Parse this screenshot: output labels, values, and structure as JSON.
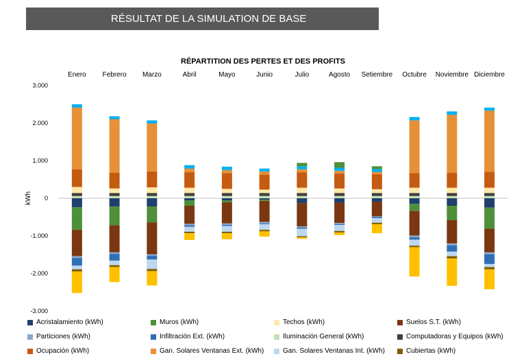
{
  "header": {
    "title": "RÉSULTAT DE LA SIMULATION DE BASE"
  },
  "chart_data": {
    "type": "bar",
    "stacked": true,
    "title": "RÉPARTITION DES PERTES ET DES PROFITS",
    "ylabel": "kWh",
    "xlabel": "",
    "ylim": [
      -3000,
      3000
    ],
    "yticks": [
      3000,
      2000,
      1000,
      0,
      -1000,
      -2000,
      -3000
    ],
    "ytick_labels": [
      "3.000",
      "2.000",
      "1.000",
      "0",
      "-1.000",
      "-2.000",
      "-3.000"
    ],
    "categories": [
      "Enero",
      "Febrero",
      "Marzo",
      "Abril",
      "Mayo",
      "Junio",
      "Julio",
      "Agosto",
      "Setiembre",
      "Octubre",
      "Noviembre",
      "Diciembre"
    ],
    "grid": false,
    "legend_position": "bottom",
    "series": [
      {
        "name": "Acristalamiento (kWh)",
        "color": "#1f3f6e",
        "values": [
          -240,
          -220,
          -220,
          -60,
          -60,
          -40,
          -130,
          -120,
          -90,
          -150,
          -200,
          -250
        ]
      },
      {
        "name": "Muros (kWh)",
        "color": "#4e8f3a",
        "values": [
          -600,
          -500,
          -420,
          -140,
          -50,
          -30,
          90,
          150,
          70,
          -190,
          -380,
          -560
        ]
      },
      {
        "name": "Techos (kWh)",
        "color": "#fde9a8",
        "values": [
          160,
          120,
          150,
          140,
          110,
          90,
          140,
          120,
          100,
          140,
          140,
          140
        ]
      },
      {
        "name": "Suelos S.T. (kWh)",
        "color": "#7a3712",
        "values": [
          -700,
          -720,
          -850,
          -480,
          -560,
          -560,
          -620,
          -540,
          -390,
          -650,
          -620,
          -630
        ]
      },
      {
        "name": "Particiones (kWh)",
        "color": "#8ba6c8",
        "values": [
          -50,
          -40,
          -40,
          -40,
          -40,
          -40,
          -30,
          -30,
          -20,
          -50,
          -50,
          -50
        ]
      },
      {
        "name": "Infiltración Ext. (kWh)",
        "color": "#2e6fb5",
        "values": [
          -200,
          -180,
          -100,
          -40,
          -30,
          -20,
          -30,
          -20,
          -30,
          -60,
          -170,
          -260
        ]
      },
      {
        "name": "Iluminación General (kWh)",
        "color": "#c5e0b4",
        "values": [
          60,
          60,
          60,
          60,
          60,
          60,
          60,
          60,
          60,
          60,
          60,
          60
        ]
      },
      {
        "name": "Computadoras y Equipos (kWh)",
        "color": "#404040",
        "values": [
          80,
          80,
          80,
          80,
          80,
          80,
          80,
          80,
          80,
          80,
          80,
          80
        ]
      },
      {
        "name": "Ocupación (kWh)",
        "color": "#c55a11",
        "values": [
          470,
          420,
          420,
          410,
          420,
          400,
          410,
          400,
          400,
          390,
          400,
          420
        ]
      },
      {
        "name": "Gan. Solares Ventanas Ext. (kWh)",
        "color": "#e69138",
        "values": [
          1640,
          1420,
          1280,
          100,
          80,
          80,
          80,
          70,
          60,
          1400,
          1540,
          1630
        ]
      },
      {
        "name": "Gan. Solares Ventanas Int. (kWh)",
        "color": "#bdd7ee",
        "values": [
          -100,
          -120,
          -250,
          -130,
          -150,
          -150,
          -200,
          -160,
          -120,
          -160,
          -120,
          -80
        ]
      },
      {
        "name": "Cubiertas (kWh)",
        "color": "#7f6000",
        "values": [
          -60,
          -50,
          -60,
          -40,
          -40,
          -40,
          -30,
          -40,
          -40,
          -40,
          -60,
          -60
        ]
      }
    ],
    "extra_series": [
      {
        "color": "#ffc000",
        "values": [
          -570,
          -400,
          -380,
          -180,
          -160,
          -140,
          -40,
          -70,
          -240,
          -780,
          -730,
          -530
        ]
      },
      {
        "color": "#00b0f0",
        "values": [
          90,
          80,
          80,
          90,
          90,
          80,
          80,
          80,
          80,
          90,
          90,
          80
        ]
      }
    ]
  }
}
